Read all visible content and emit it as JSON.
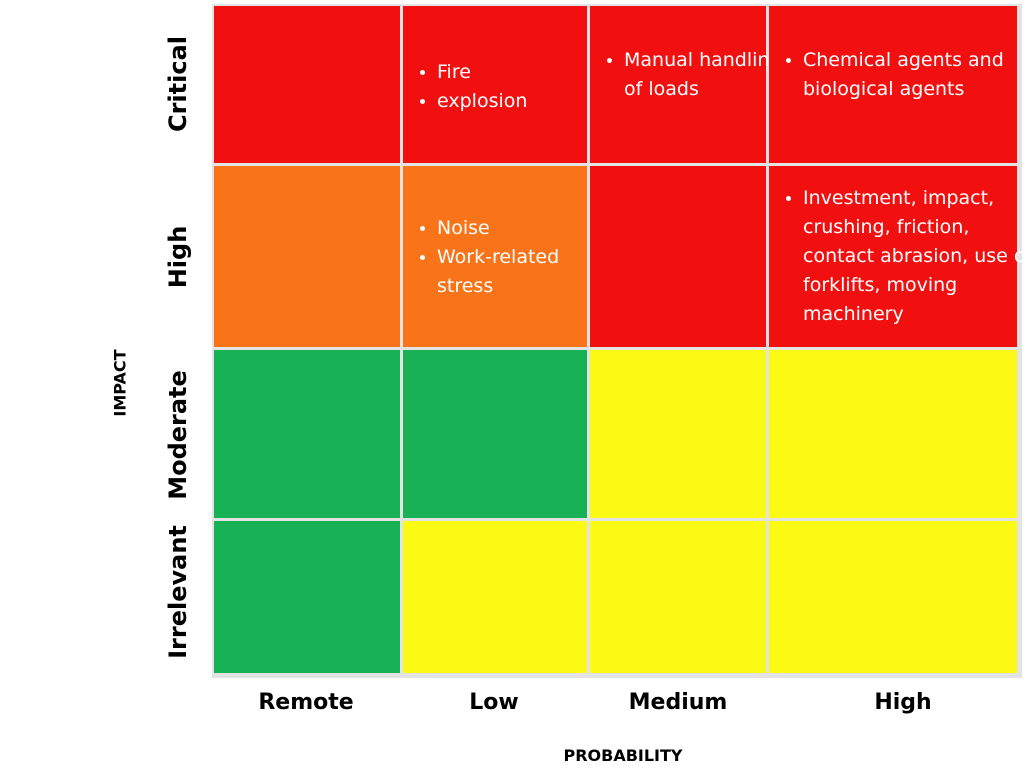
{
  "axes": {
    "y_title": "IMPACT",
    "x_title": "PROBABILITY"
  },
  "colors": {
    "red": "#f20f0f",
    "orange": "#f97318",
    "green": "#18b155",
    "yellow": "#fafa14",
    "grid_lines": "#e3e3e3"
  },
  "rows": [
    "Critical",
    "High",
    "Moderate",
    "Irrelevant"
  ],
  "columns": [
    "Remote",
    "Low",
    "Medium",
    "High"
  ],
  "cells": [
    [
      {
        "color": "red",
        "items": []
      },
      {
        "color": "red",
        "items": [
          "Fire",
          "explosion"
        ]
      },
      {
        "color": "red",
        "items": [
          "Manual handling of loads"
        ]
      },
      {
        "color": "red",
        "items": [
          "Chemical agents and biological agents"
        ]
      }
    ],
    [
      {
        "color": "orange",
        "items": []
      },
      {
        "color": "orange",
        "items": [
          "Noise",
          "Work-related stress"
        ]
      },
      {
        "color": "red",
        "items": []
      },
      {
        "color": "red",
        "items": [
          "Investment, impact, crushing, friction, contact abrasion, use of forklifts, moving machinery"
        ]
      }
    ],
    [
      {
        "color": "green",
        "items": []
      },
      {
        "color": "green",
        "items": []
      },
      {
        "color": "yellow",
        "items": []
      },
      {
        "color": "yellow",
        "items": []
      }
    ],
    [
      {
        "color": "green",
        "items": []
      },
      {
        "color": "yellow",
        "items": []
      },
      {
        "color": "yellow",
        "items": []
      },
      {
        "color": "yellow",
        "items": []
      }
    ]
  ]
}
